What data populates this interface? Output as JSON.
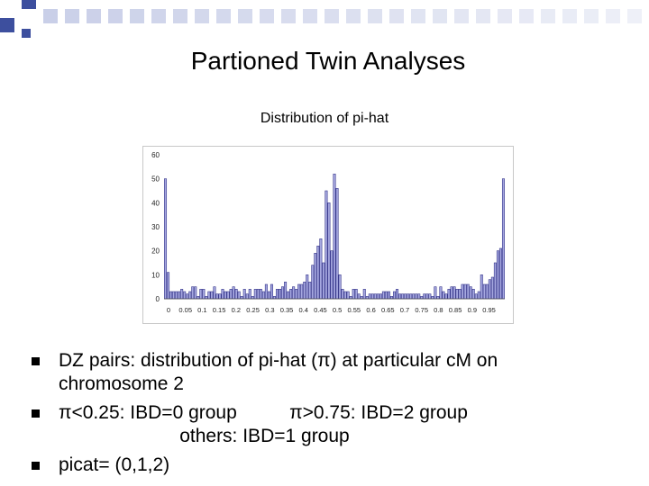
{
  "slide": {
    "title": "Partioned Twin Analyses",
    "bullets": [
      {
        "lines": [
          "DZ pairs: distribution of pi-hat (π) at particular cM on",
          "chromosome 2"
        ]
      },
      {
        "lines": [
          "π<0.25: IBD=0 group          π>0.75: IBD=2 group",
          "                       others: IBD=1 group"
        ]
      },
      {
        "lines": [
          "picat= (0,1,2)"
        ]
      }
    ],
    "colors": {
      "accent": "#3d4f9e",
      "bar_fill": "#a6a8e0",
      "bar_stroke": "#35358a",
      "deco_square": "#c9cfe8"
    }
  },
  "chart_data": {
    "type": "bar",
    "title": "Distribution of pi-hat",
    "xlabel": "",
    "ylabel": "",
    "ylim": [
      0,
      60
    ],
    "yticks": [
      0,
      10,
      20,
      30,
      40,
      50,
      60
    ],
    "ytick_labels": [
      "0",
      "10",
      "20",
      "30",
      "40",
      "50",
      "60"
    ],
    "xtick_labels": [
      "0",
      "0.05",
      "0.1",
      "0.15",
      "0.2",
      "0.25",
      "0.3",
      "0.35",
      "0.4",
      "0.45",
      "0.5",
      "0.55",
      "0.6",
      "0.65",
      "0.7",
      "0.75",
      "0.8",
      "0.85",
      "0.9",
      "0.95"
    ],
    "grid": false,
    "legend": "none",
    "values": [
      50,
      11,
      3,
      3,
      3,
      3,
      4,
      3,
      2,
      3,
      5,
      5,
      1,
      4,
      4,
      1,
      3,
      3,
      5,
      2,
      2,
      4,
      3,
      3,
      4,
      5,
      4,
      3,
      1,
      4,
      2,
      4,
      1,
      4,
      4,
      4,
      3,
      6,
      3,
      6,
      1,
      4,
      4,
      5,
      7,
      3,
      4,
      5,
      4,
      6,
      6,
      7,
      10,
      7,
      14,
      19,
      22,
      25,
      15,
      45,
      40,
      20,
      52,
      46,
      10,
      4,
      3,
      3,
      1,
      4,
      4,
      2,
      1,
      4,
      1,
      2,
      2,
      2,
      2,
      2,
      3,
      3,
      3,
      1,
      3,
      4,
      2,
      2,
      2,
      2,
      2,
      2,
      2,
      2,
      1,
      2,
      2,
      2,
      1,
      5,
      1,
      5,
      3,
      2,
      4,
      5,
      5,
      4,
      4,
      6,
      6,
      6,
      5,
      4,
      2,
      3,
      10,
      6,
      6,
      8,
      9,
      15,
      20,
      21,
      50
    ]
  }
}
